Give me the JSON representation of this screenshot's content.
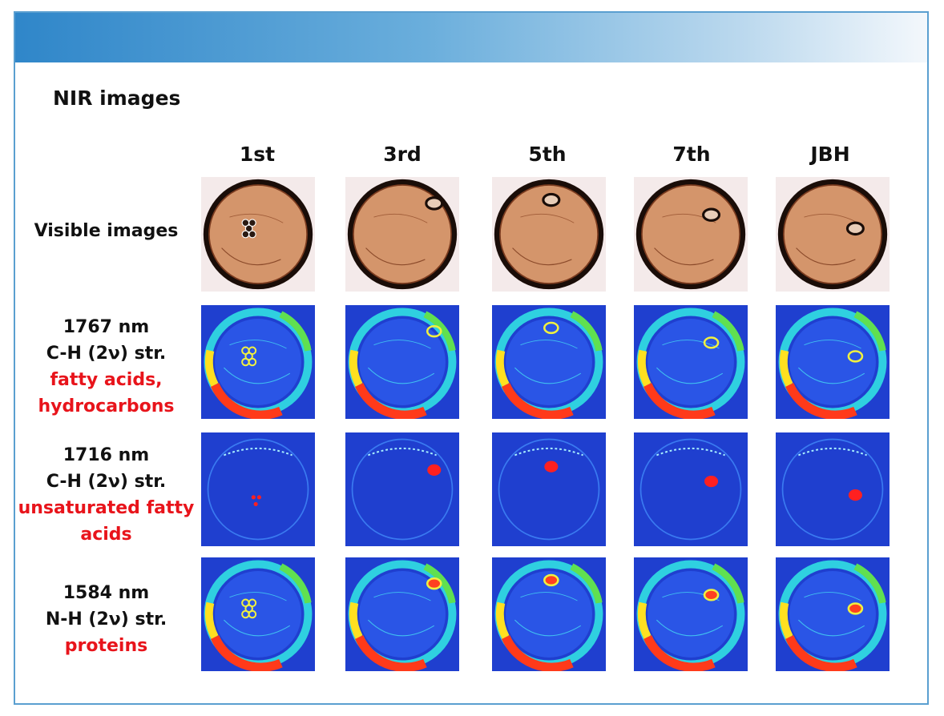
{
  "header": {
    "title": "NIR images"
  },
  "columns": [
    "1st",
    "3rd",
    "5th",
    "7th",
    "JBH"
  ],
  "rows": [
    {
      "label": "Visible images"
    },
    {
      "wavelength": "1767 nm",
      "mode": "C-H (2ν) str.",
      "assignment_line1": "fatty acids,",
      "assignment_line2": "hydrocarbons"
    },
    {
      "wavelength": "1716 nm",
      "mode": "C-H (2ν) str.",
      "assignment_line1": "unsaturated fatty",
      "assignment_line2": "acids"
    },
    {
      "wavelength": "1584 nm",
      "mode": "N-H (2ν) str.",
      "assignment": "proteins"
    }
  ],
  "colors": {
    "banner_start": "#2f86c9",
    "frame_border": "#5a9fd0",
    "assignment_text": "#e8141b",
    "nir_background": "#1f3fcf",
    "visible_fill": "#d4956b",
    "visible_rim": "#1a0d08"
  }
}
